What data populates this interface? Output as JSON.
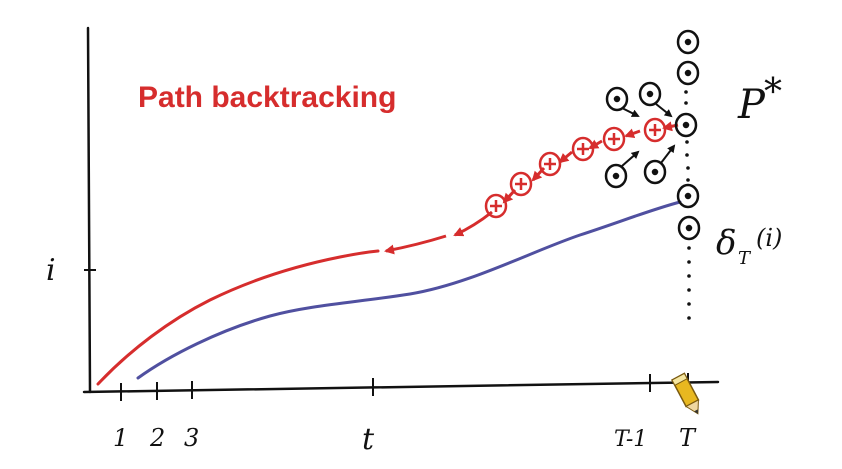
{
  "title": "Path backtracking",
  "axis": {
    "y_label": "i",
    "x_ticks": [
      "1",
      "2",
      "3",
      "t",
      "T-1",
      "T"
    ]
  },
  "labels": {
    "p_star": "P",
    "p_star_sup": "*",
    "delta": "δ",
    "delta_sub": "T",
    "delta_arg": "(i)"
  },
  "colors": {
    "backtrack": "#d62d2d",
    "path": "#5050a0",
    "ink": "#111111",
    "pencil": "#e8b820"
  },
  "icons": {
    "pencil": "pencil-icon",
    "state": "circle-dot-icon"
  }
}
